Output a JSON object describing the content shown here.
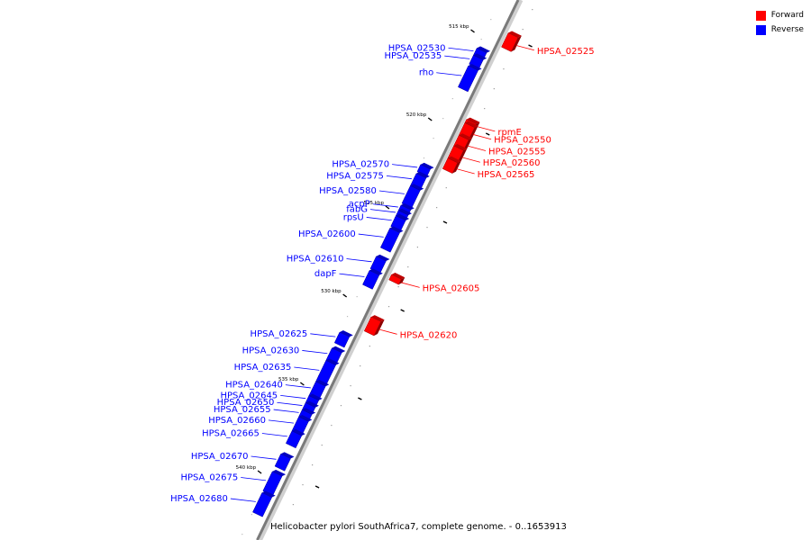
{
  "legend": {
    "forward_label": "Forward",
    "reverse_label": "Reverse",
    "forward_color": "#ff0000",
    "reverse_color": "#0000ff"
  },
  "caption": "Helicobacter pylori SouthAfrica7, complete genome. - 0..1653913",
  "scale_unit": "kbp",
  "ticks": [
    {
      "pos": 515,
      "label": "515 kbp"
    },
    {
      "pos": 520,
      "label": "520 kbp"
    },
    {
      "pos": 525,
      "label": "525 kbp"
    },
    {
      "pos": 530,
      "label": "530 kbp"
    },
    {
      "pos": 535,
      "label": "535 kbp"
    },
    {
      "pos": 540,
      "label": "540 kbp"
    }
  ],
  "genes": [
    {
      "name": "HPSA_02525",
      "strand": "forward",
      "start": 515.2,
      "end": 516.0
    },
    {
      "name": "HPSA_02530",
      "strand": "reverse",
      "start": 516.6,
      "end": 517.0
    },
    {
      "name": "HPSA_02535",
      "strand": "reverse",
      "start": 517.0,
      "end": 517.5
    },
    {
      "name": "rho",
      "strand": "reverse",
      "start": 517.6,
      "end": 518.8
    },
    {
      "name": "rpmE",
      "strand": "forward",
      "start": 520.1,
      "end": 520.3
    },
    {
      "name": "HPSA_02550",
      "strand": "forward",
      "start": 520.3,
      "end": 521.0
    },
    {
      "name": "HPSA_02555",
      "strand": "forward",
      "start": 521.0,
      "end": 521.6
    },
    {
      "name": "HPSA_02560",
      "strand": "forward",
      "start": 521.6,
      "end": 522.3
    },
    {
      "name": "HPSA_02565",
      "strand": "forward",
      "start": 522.3,
      "end": 522.9
    },
    {
      "name": "HPSA_02570",
      "strand": "reverse",
      "start": 523.2,
      "end": 523.6
    },
    {
      "name": "HPSA_02575",
      "strand": "reverse",
      "start": 523.7,
      "end": 524.4
    },
    {
      "name": "HPSA_02580",
      "strand": "reverse",
      "start": 524.4,
      "end": 525.4
    },
    {
      "name": "acpP",
      "strand": "reverse",
      "start": 525.5,
      "end": 525.8
    },
    {
      "name": "fabG",
      "strand": "reverse",
      "start": 525.8,
      "end": 526.1
    },
    {
      "name": "rpsU",
      "strand": "reverse",
      "start": 526.1,
      "end": 526.7
    },
    {
      "name": "HPSA_02600",
      "strand": "reverse",
      "start": 526.8,
      "end": 527.9
    },
    {
      "name": "HPSA_02605",
      "strand": "forward",
      "start": 528.9,
      "end": 529.2
    },
    {
      "name": "HPSA_02610",
      "strand": "reverse",
      "start": 528.4,
      "end": 529.1
    },
    {
      "name": "dapF",
      "strand": "reverse",
      "start": 529.2,
      "end": 530.0
    },
    {
      "name": "HPSA_02620",
      "strand": "forward",
      "start": 531.3,
      "end": 532.1
    },
    {
      "name": "HPSA_02625",
      "strand": "reverse",
      "start": 532.7,
      "end": 533.3
    },
    {
      "name": "HPSA_02630",
      "strand": "reverse",
      "start": 533.6,
      "end": 534.3
    },
    {
      "name": "HPSA_02635",
      "strand": "reverse",
      "start": 534.3,
      "end": 535.5
    },
    {
      "name": "HPSA_02640",
      "strand": "reverse",
      "start": 535.5,
      "end": 536.3
    },
    {
      "name": "HPSA_02645",
      "strand": "reverse",
      "start": 536.3,
      "end": 536.7
    },
    {
      "name": "HPSA_02650",
      "strand": "reverse",
      "start": 536.7,
      "end": 537.1
    },
    {
      "name": "HPSA_02655",
      "strand": "reverse",
      "start": 537.1,
      "end": 537.5
    },
    {
      "name": "HPSA_02660",
      "strand": "reverse",
      "start": 537.5,
      "end": 538.3
    },
    {
      "name": "HPSA_02665",
      "strand": "reverse",
      "start": 538.3,
      "end": 539.0
    },
    {
      "name": "HPSA_02670",
      "strand": "reverse",
      "start": 539.6,
      "end": 540.3
    },
    {
      "name": "HPSA_02675",
      "strand": "reverse",
      "start": 540.6,
      "end": 541.7
    },
    {
      "name": "HPSA_02680",
      "strand": "reverse",
      "start": 541.8,
      "end": 542.9
    }
  ]
}
